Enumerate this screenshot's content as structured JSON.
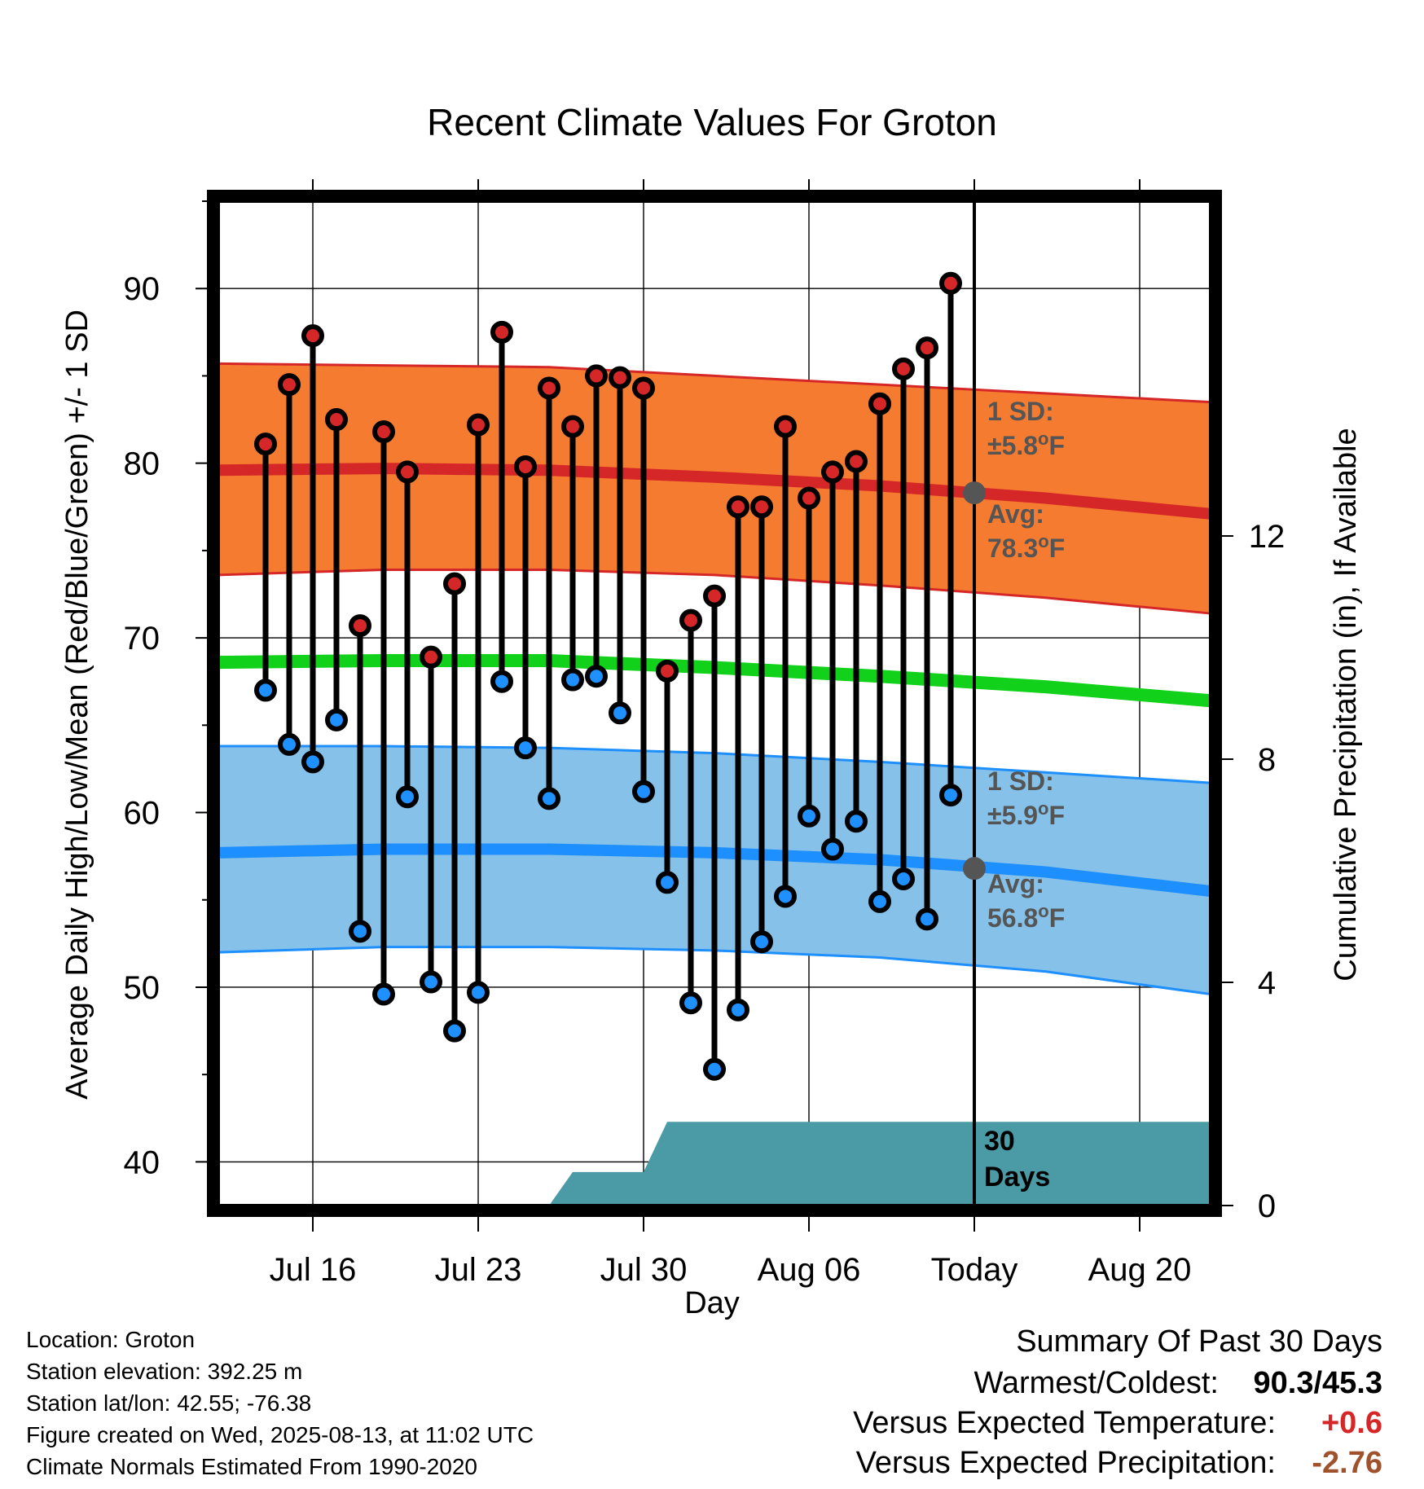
{
  "chart_data": {
    "type": "line",
    "title": "Recent Climate Values For Groton",
    "xlabel": "Day",
    "ylabel": "Average Daily High/Low/Mean (Red/Blue/Green) +/- 1 SD",
    "y2label": "Cumulative Precipitation (in), If Available",
    "ylim": [
      37.5,
      95
    ],
    "y2lim": [
      0,
      18
    ],
    "xlim": [
      "2025-07-12",
      "2025-08-23"
    ],
    "x_ticks": [
      "Jul 16",
      "Jul 23",
      "Jul 30",
      "Aug 06",
      "Today",
      "Aug 20"
    ],
    "y_ticks": [
      40,
      50,
      60,
      70,
      80,
      90
    ],
    "y2_ticks": [
      0,
      4,
      8,
      12
    ],
    "today": "2025-08-13",
    "grid": true,
    "dates": [
      "2025-07-14",
      "2025-07-15",
      "2025-07-16",
      "2025-07-17",
      "2025-07-18",
      "2025-07-19",
      "2025-07-20",
      "2025-07-21",
      "2025-07-22",
      "2025-07-23",
      "2025-07-24",
      "2025-07-25",
      "2025-07-26",
      "2025-07-27",
      "2025-07-28",
      "2025-07-29",
      "2025-07-30",
      "2025-07-31",
      "2025-08-01",
      "2025-08-02",
      "2025-08-03",
      "2025-08-04",
      "2025-08-05",
      "2025-08-06",
      "2025-08-07",
      "2025-08-08",
      "2025-08-09",
      "2025-08-10",
      "2025-08-11",
      "2025-08-12"
    ],
    "series": [
      {
        "name": "High",
        "color": "#d62728",
        "values": [
          81.1,
          84.5,
          87.3,
          82.5,
          70.7,
          81.8,
          79.5,
          68.9,
          73.1,
          82.2,
          87.5,
          79.8,
          84.3,
          82.1,
          85.0,
          84.9,
          84.3,
          68.1,
          71.0,
          72.4,
          77.5,
          77.5,
          82.1,
          78.0,
          79.5,
          80.1,
          83.4,
          85.4,
          86.6,
          90.3
        ]
      },
      {
        "name": "Low",
        "color": "#1e90ff",
        "values": [
          67.0,
          63.9,
          62.9,
          65.3,
          53.2,
          49.6,
          60.9,
          50.3,
          47.5,
          49.7,
          67.5,
          63.7,
          60.8,
          67.6,
          67.8,
          65.7,
          61.2,
          56.0,
          49.1,
          45.3,
          48.7,
          52.6,
          55.2,
          59.8,
          57.9,
          59.5,
          54.9,
          56.2,
          53.9,
          61.0
        ]
      }
    ],
    "normals": {
      "dates": [
        "2025-07-12",
        "2025-07-19",
        "2025-07-26",
        "2025-08-02",
        "2025-08-09",
        "2025-08-16",
        "2025-08-23"
      ],
      "high_mean": [
        79.6,
        79.7,
        79.6,
        79.2,
        78.7,
        78.0,
        77.1
      ],
      "high_upper": [
        85.7,
        85.6,
        85.5,
        85.0,
        84.5,
        84.0,
        83.5
      ],
      "high_lower": [
        73.6,
        73.9,
        73.9,
        73.6,
        73.0,
        72.3,
        71.4
      ],
      "mean": [
        68.6,
        68.7,
        68.7,
        68.3,
        67.8,
        67.2,
        66.4
      ],
      "low_mean": [
        57.7,
        57.9,
        57.9,
        57.7,
        57.3,
        56.6,
        55.5
      ],
      "low_upper": [
        63.8,
        63.8,
        63.7,
        63.4,
        62.9,
        62.3,
        61.7
      ],
      "low_lower": [
        52.0,
        52.3,
        52.3,
        52.1,
        51.7,
        50.9,
        49.6
      ]
    },
    "precip": {
      "dates": [
        "2025-07-26",
        "2025-07-27",
        "2025-07-30",
        "2025-07-31",
        "2025-08-23"
      ],
      "cumulative": [
        0,
        0.6,
        0.6,
        1.5,
        1.5
      ]
    },
    "annotations": {
      "high_sd": [
        "1 SD:",
        "±5.8°F"
      ],
      "high_avg": [
        "Avg:",
        "78.3°F"
      ],
      "high_avg_value": 78.3,
      "low_sd": [
        "1 SD:",
        "±5.9°F"
      ],
      "low_avg": [
        "Avg:",
        "56.8°F"
      ],
      "low_avg_value": 56.8,
      "days": [
        "30",
        "Days"
      ]
    },
    "colors": {
      "high_band": "#f47b2f",
      "high_line": "#d62728",
      "low_band": "#85c1e9",
      "low_line": "#1e8fff",
      "mean_line": "#11d11a",
      "precip_fill": "#4a9ba6"
    }
  },
  "footer": {
    "location": "Location: Groton",
    "elevation": "Station elevation: 392.25 m",
    "latlon": "Station lat/lon: 42.55; -76.38",
    "created": "Figure created on Wed, 2025-08-13, at 11:02 UTC",
    "normals": "Climate Normals Estimated From 1990-2020"
  },
  "summary": {
    "heading": "Summary Of Past 30 Days",
    "warmest_label": "Warmest/Coldest:",
    "warmest_value": "90.3/45.3",
    "temp_label": "Versus Expected Temperature:",
    "temp_value": "+0.6",
    "temp_color": "#d62728",
    "precip_label": "Versus Expected Precipitation:",
    "precip_value": "-2.76",
    "precip_color": "#a0522d"
  }
}
